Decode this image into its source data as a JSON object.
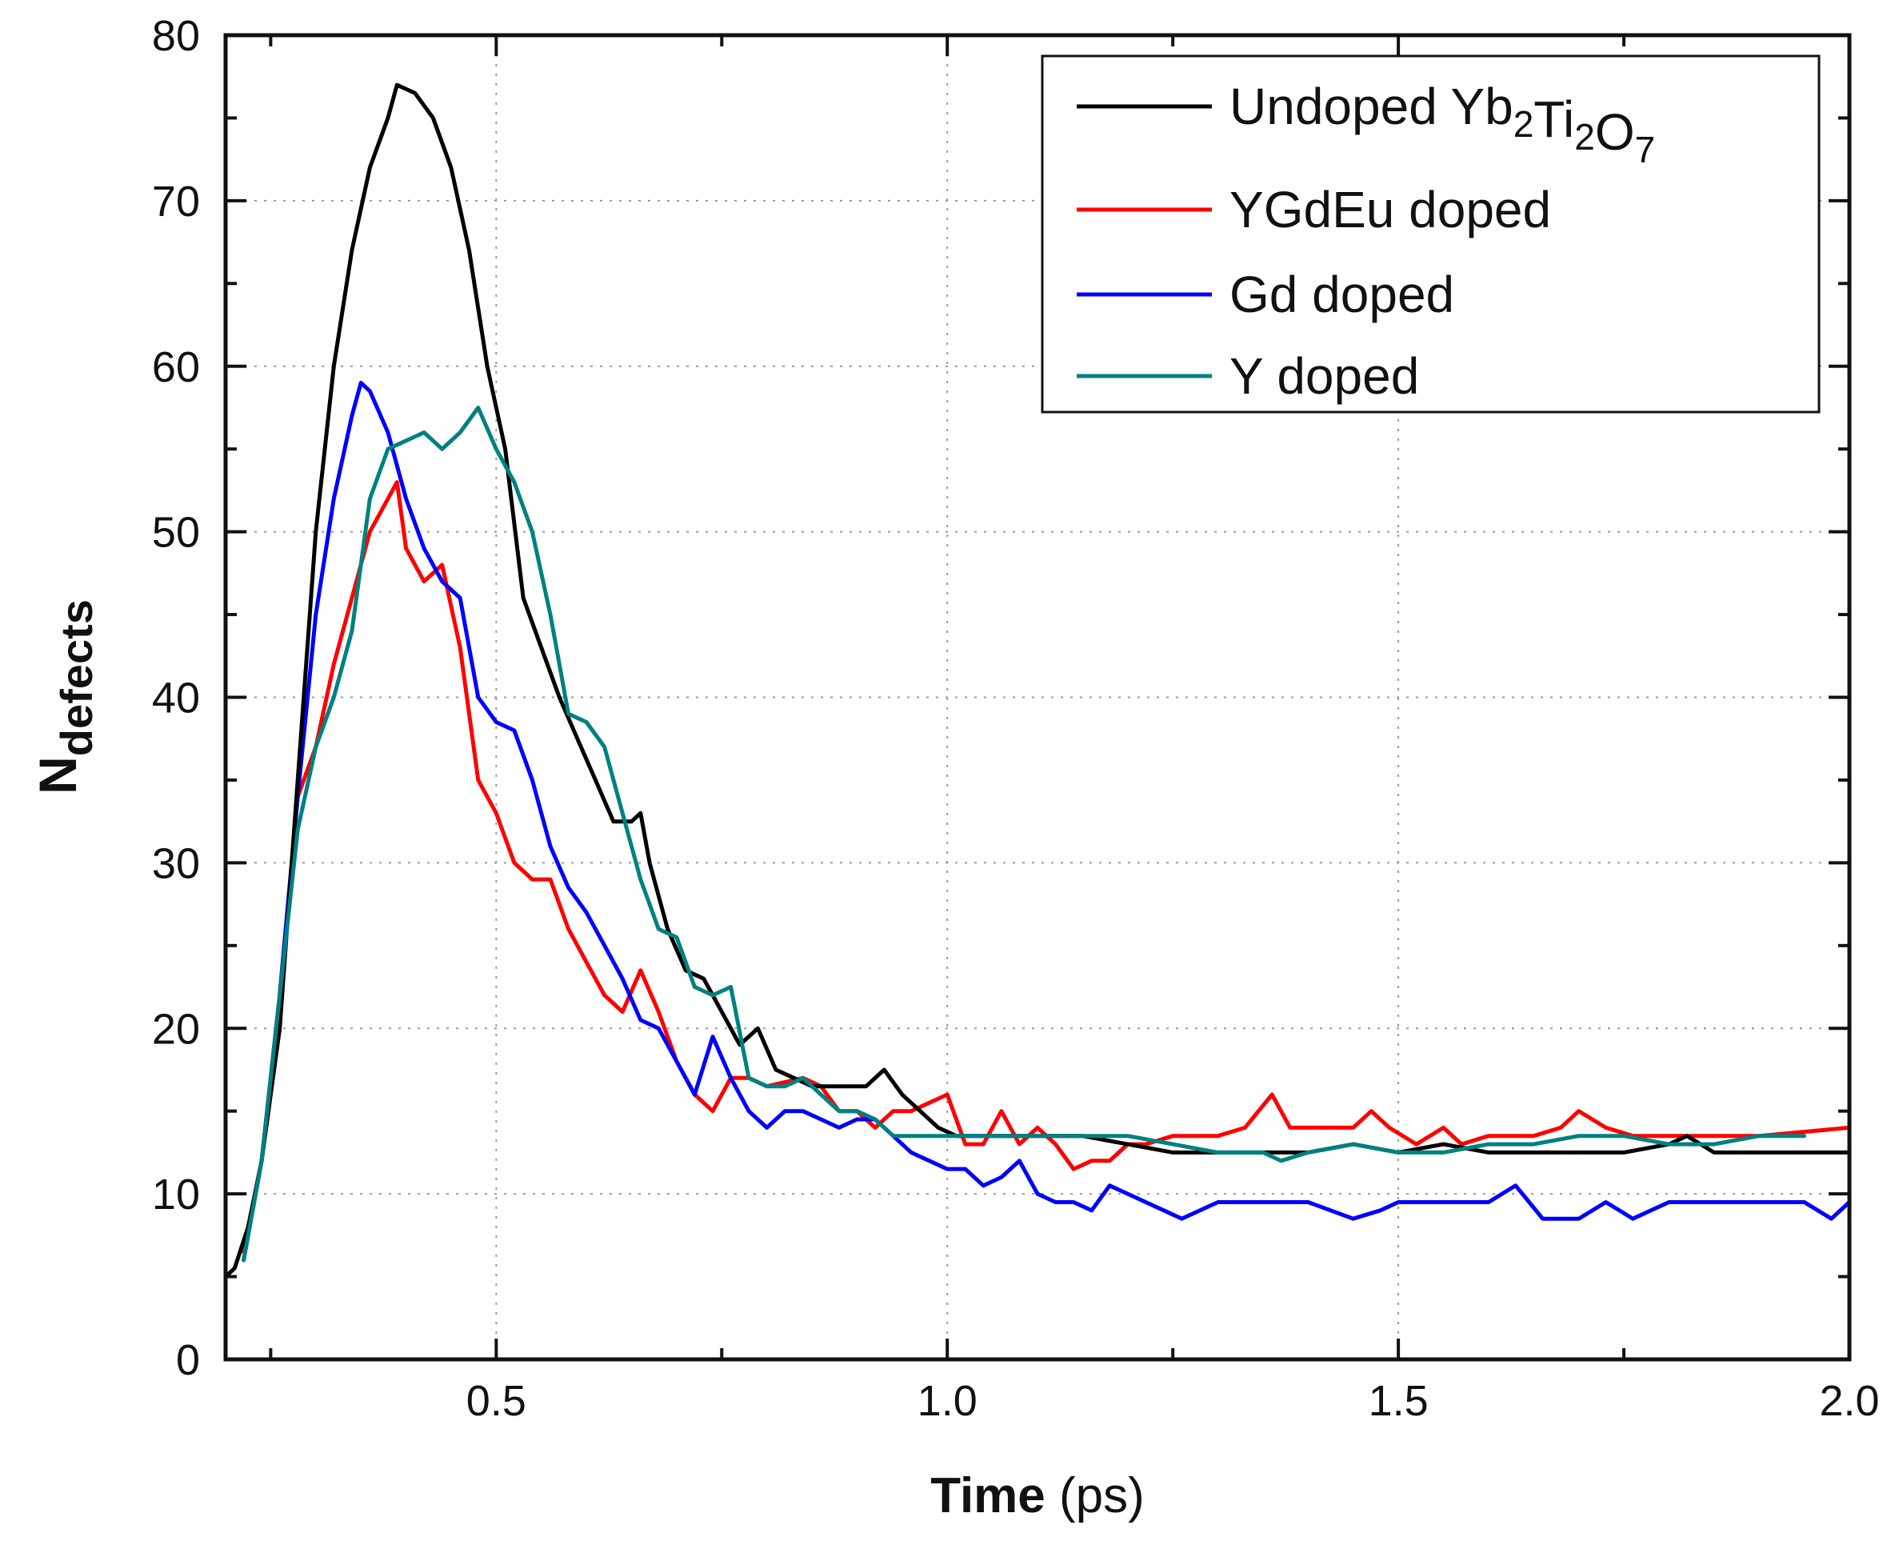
{
  "chart_data": {
    "type": "line",
    "xlabel_bold": "Time",
    "xlabel_unit": " (ps)",
    "ylabel_main": "N",
    "ylabel_sub": "defects",
    "xlim": [
      0.2,
      2.0
    ],
    "ylim": [
      0,
      80
    ],
    "x_ticks": [
      0.5,
      1.0,
      1.5,
      2.0
    ],
    "x_tick_labels": [
      "0.5",
      "1.0",
      "1.5",
      "2.0"
    ],
    "y_ticks": [
      0,
      10,
      20,
      30,
      40,
      50,
      60,
      70,
      80
    ],
    "y_tick_labels": [
      "0",
      "10",
      "20",
      "30",
      "40",
      "50",
      "60",
      "70",
      "80"
    ],
    "grid": true,
    "legend_position": "top-right",
    "series": [
      {
        "name": "Undoped Yb2Ti2O7",
        "legend_base": "Undoped Yb",
        "legend_parts": [
          {
            "text": "Undoped Yb",
            "sub": false
          },
          {
            "text": "2",
            "sub": true
          },
          {
            "text": "Ti",
            "sub": false
          },
          {
            "text": "2",
            "sub": true
          },
          {
            "text": "O",
            "sub": false
          },
          {
            "text": "7",
            "sub": true
          }
        ],
        "color": "#000000",
        "points": [
          [
            0.2,
            5
          ],
          [
            0.21,
            5.5
          ],
          [
            0.225,
            8
          ],
          [
            0.24,
            12
          ],
          [
            0.26,
            20
          ],
          [
            0.28,
            35
          ],
          [
            0.3,
            50
          ],
          [
            0.32,
            60
          ],
          [
            0.34,
            67
          ],
          [
            0.36,
            72
          ],
          [
            0.38,
            75
          ],
          [
            0.39,
            77
          ],
          [
            0.41,
            76.5
          ],
          [
            0.43,
            75
          ],
          [
            0.45,
            72
          ],
          [
            0.47,
            67
          ],
          [
            0.49,
            60
          ],
          [
            0.51,
            55
          ],
          [
            0.53,
            46
          ],
          [
            0.55,
            43
          ],
          [
            0.57,
            40
          ],
          [
            0.59,
            37.5
          ],
          [
            0.61,
            35
          ],
          [
            0.63,
            32.5
          ],
          [
            0.65,
            32.5
          ],
          [
            0.66,
            33
          ],
          [
            0.67,
            30
          ],
          [
            0.69,
            26
          ],
          [
            0.71,
            23.5
          ],
          [
            0.73,
            23
          ],
          [
            0.75,
            21
          ],
          [
            0.77,
            19
          ],
          [
            0.79,
            20
          ],
          [
            0.81,
            17.5
          ],
          [
            0.83,
            17
          ],
          [
            0.85,
            16.5
          ],
          [
            0.88,
            16.5
          ],
          [
            0.91,
            16.5
          ],
          [
            0.93,
            17.5
          ],
          [
            0.95,
            16
          ],
          [
            0.97,
            15
          ],
          [
            0.99,
            14
          ],
          [
            1.01,
            13.5
          ],
          [
            1.05,
            13.5
          ],
          [
            1.1,
            13.5
          ],
          [
            1.15,
            13.5
          ],
          [
            1.2,
            13
          ],
          [
            1.25,
            12.5
          ],
          [
            1.3,
            12.5
          ],
          [
            1.35,
            12.5
          ],
          [
            1.4,
            12.5
          ],
          [
            1.45,
            13
          ],
          [
            1.5,
            12.5
          ],
          [
            1.55,
            13
          ],
          [
            1.6,
            12.5
          ],
          [
            1.65,
            12.5
          ],
          [
            1.7,
            12.5
          ],
          [
            1.75,
            12.5
          ],
          [
            1.8,
            13
          ],
          [
            1.82,
            13.5
          ],
          [
            1.85,
            12.5
          ],
          [
            1.9,
            12.5
          ],
          [
            2.0,
            12.5
          ]
        ]
      },
      {
        "name": "YGdEu doped",
        "legend_base": "YGdEu doped",
        "color": "#ff0000",
        "points": [
          [
            0.22,
            6.5
          ],
          [
            0.24,
            12
          ],
          [
            0.26,
            22
          ],
          [
            0.28,
            34
          ],
          [
            0.3,
            37
          ],
          [
            0.32,
            42
          ],
          [
            0.34,
            46
          ],
          [
            0.36,
            50
          ],
          [
            0.38,
            52
          ],
          [
            0.39,
            53
          ],
          [
            0.4,
            49
          ],
          [
            0.42,
            47
          ],
          [
            0.44,
            48
          ],
          [
            0.46,
            43
          ],
          [
            0.48,
            35
          ],
          [
            0.5,
            33
          ],
          [
            0.52,
            30
          ],
          [
            0.54,
            29
          ],
          [
            0.56,
            29
          ],
          [
            0.58,
            26
          ],
          [
            0.6,
            24
          ],
          [
            0.62,
            22
          ],
          [
            0.64,
            21
          ],
          [
            0.66,
            23.5
          ],
          [
            0.68,
            21
          ],
          [
            0.7,
            18
          ],
          [
            0.72,
            16
          ],
          [
            0.74,
            15
          ],
          [
            0.76,
            17
          ],
          [
            0.78,
            17
          ],
          [
            0.8,
            16.5
          ],
          [
            0.84,
            17
          ],
          [
            0.86,
            16.5
          ],
          [
            0.88,
            15
          ],
          [
            0.9,
            15
          ],
          [
            0.92,
            14
          ],
          [
            0.94,
            15
          ],
          [
            0.96,
            15
          ],
          [
            0.98,
            15.5
          ],
          [
            1.0,
            16
          ],
          [
            1.02,
            13
          ],
          [
            1.04,
            13
          ],
          [
            1.06,
            15
          ],
          [
            1.08,
            13
          ],
          [
            1.1,
            14
          ],
          [
            1.12,
            13
          ],
          [
            1.14,
            11.5
          ],
          [
            1.16,
            12
          ],
          [
            1.18,
            12
          ],
          [
            1.2,
            13
          ],
          [
            1.22,
            13
          ],
          [
            1.25,
            13.5
          ],
          [
            1.3,
            13.5
          ],
          [
            1.33,
            14
          ],
          [
            1.36,
            16
          ],
          [
            1.38,
            14
          ],
          [
            1.4,
            14
          ],
          [
            1.45,
            14
          ],
          [
            1.47,
            15
          ],
          [
            1.49,
            14
          ],
          [
            1.52,
            13
          ],
          [
            1.55,
            14
          ],
          [
            1.57,
            13
          ],
          [
            1.6,
            13.5
          ],
          [
            1.65,
            13.5
          ],
          [
            1.68,
            14
          ],
          [
            1.7,
            15
          ],
          [
            1.73,
            14
          ],
          [
            1.76,
            13.5
          ],
          [
            1.8,
            13.5
          ],
          [
            1.85,
            13.5
          ],
          [
            1.9,
            13.5
          ],
          [
            2.0,
            14
          ]
        ]
      },
      {
        "name": "Gd doped",
        "legend_base": "Gd doped",
        "color": "#0000ff",
        "points": [
          [
            0.22,
            6
          ],
          [
            0.24,
            12
          ],
          [
            0.26,
            22
          ],
          [
            0.28,
            34
          ],
          [
            0.3,
            45
          ],
          [
            0.32,
            52
          ],
          [
            0.34,
            57
          ],
          [
            0.35,
            59
          ],
          [
            0.36,
            58.5
          ],
          [
            0.38,
            56
          ],
          [
            0.4,
            52
          ],
          [
            0.42,
            49
          ],
          [
            0.44,
            47
          ],
          [
            0.46,
            46
          ],
          [
            0.48,
            40
          ],
          [
            0.5,
            38.5
          ],
          [
            0.52,
            38
          ],
          [
            0.54,
            35
          ],
          [
            0.56,
            31
          ],
          [
            0.58,
            28.5
          ],
          [
            0.6,
            27
          ],
          [
            0.62,
            25
          ],
          [
            0.64,
            23
          ],
          [
            0.66,
            20.5
          ],
          [
            0.68,
            20
          ],
          [
            0.7,
            18
          ],
          [
            0.72,
            16
          ],
          [
            0.74,
            19.5
          ],
          [
            0.76,
            17
          ],
          [
            0.78,
            15
          ],
          [
            0.8,
            14
          ],
          [
            0.82,
            15
          ],
          [
            0.84,
            15
          ],
          [
            0.86,
            14.5
          ],
          [
            0.88,
            14
          ],
          [
            0.9,
            14.5
          ],
          [
            0.92,
            14.5
          ],
          [
            0.94,
            13.5
          ],
          [
            0.96,
            12.5
          ],
          [
            0.98,
            12
          ],
          [
            1.0,
            11.5
          ],
          [
            1.02,
            11.5
          ],
          [
            1.04,
            10.5
          ],
          [
            1.06,
            11
          ],
          [
            1.08,
            12
          ],
          [
            1.1,
            10
          ],
          [
            1.12,
            9.5
          ],
          [
            1.14,
            9.5
          ],
          [
            1.16,
            9
          ],
          [
            1.18,
            10.5
          ],
          [
            1.2,
            10
          ],
          [
            1.22,
            9.5
          ],
          [
            1.24,
            9
          ],
          [
            1.26,
            8.5
          ],
          [
            1.3,
            9.5
          ],
          [
            1.35,
            9.5
          ],
          [
            1.4,
            9.5
          ],
          [
            1.45,
            8.5
          ],
          [
            1.48,
            9
          ],
          [
            1.5,
            9.5
          ],
          [
            1.55,
            9.5
          ],
          [
            1.6,
            9.5
          ],
          [
            1.63,
            10.5
          ],
          [
            1.66,
            8.5
          ],
          [
            1.7,
            8.5
          ],
          [
            1.73,
            9.5
          ],
          [
            1.76,
            8.5
          ],
          [
            1.8,
            9.5
          ],
          [
            1.85,
            9.5
          ],
          [
            1.9,
            9.5
          ],
          [
            1.95,
            9.5
          ],
          [
            1.98,
            8.5
          ],
          [
            2.0,
            9.5
          ]
        ]
      },
      {
        "name": "Y doped",
        "legend_base": "Y doped",
        "color": "#008080",
        "points": [
          [
            0.22,
            6
          ],
          [
            0.24,
            12
          ],
          [
            0.26,
            22
          ],
          [
            0.28,
            32
          ],
          [
            0.3,
            37
          ],
          [
            0.32,
            40
          ],
          [
            0.34,
            44
          ],
          [
            0.36,
            52
          ],
          [
            0.38,
            55
          ],
          [
            0.4,
            55.5
          ],
          [
            0.42,
            56
          ],
          [
            0.44,
            55
          ],
          [
            0.46,
            56
          ],
          [
            0.48,
            57.5
          ],
          [
            0.5,
            55
          ],
          [
            0.52,
            53
          ],
          [
            0.54,
            50
          ],
          [
            0.56,
            45
          ],
          [
            0.58,
            39
          ],
          [
            0.6,
            38.5
          ],
          [
            0.62,
            37
          ],
          [
            0.64,
            33
          ],
          [
            0.66,
            29
          ],
          [
            0.68,
            26
          ],
          [
            0.7,
            25.5
          ],
          [
            0.72,
            22.5
          ],
          [
            0.74,
            22
          ],
          [
            0.76,
            22.5
          ],
          [
            0.78,
            17
          ],
          [
            0.8,
            16.5
          ],
          [
            0.82,
            16.5
          ],
          [
            0.84,
            17
          ],
          [
            0.86,
            16
          ],
          [
            0.88,
            15
          ],
          [
            0.9,
            15
          ],
          [
            0.92,
            14.5
          ],
          [
            0.94,
            13.5
          ],
          [
            0.96,
            13.5
          ],
          [
            0.98,
            13.5
          ],
          [
            1.0,
            13.5
          ],
          [
            1.05,
            13.5
          ],
          [
            1.1,
            13.5
          ],
          [
            1.15,
            13.5
          ],
          [
            1.2,
            13.5
          ],
          [
            1.25,
            13
          ],
          [
            1.3,
            12.5
          ],
          [
            1.35,
            12.5
          ],
          [
            1.37,
            12
          ],
          [
            1.4,
            12.5
          ],
          [
            1.45,
            13
          ],
          [
            1.5,
            12.5
          ],
          [
            1.55,
            12.5
          ],
          [
            1.6,
            13
          ],
          [
            1.65,
            13
          ],
          [
            1.7,
            13.5
          ],
          [
            1.75,
            13.5
          ],
          [
            1.8,
            13
          ],
          [
            1.85,
            13
          ],
          [
            1.9,
            13.5
          ],
          [
            1.95,
            13.5
          ]
        ]
      }
    ]
  }
}
